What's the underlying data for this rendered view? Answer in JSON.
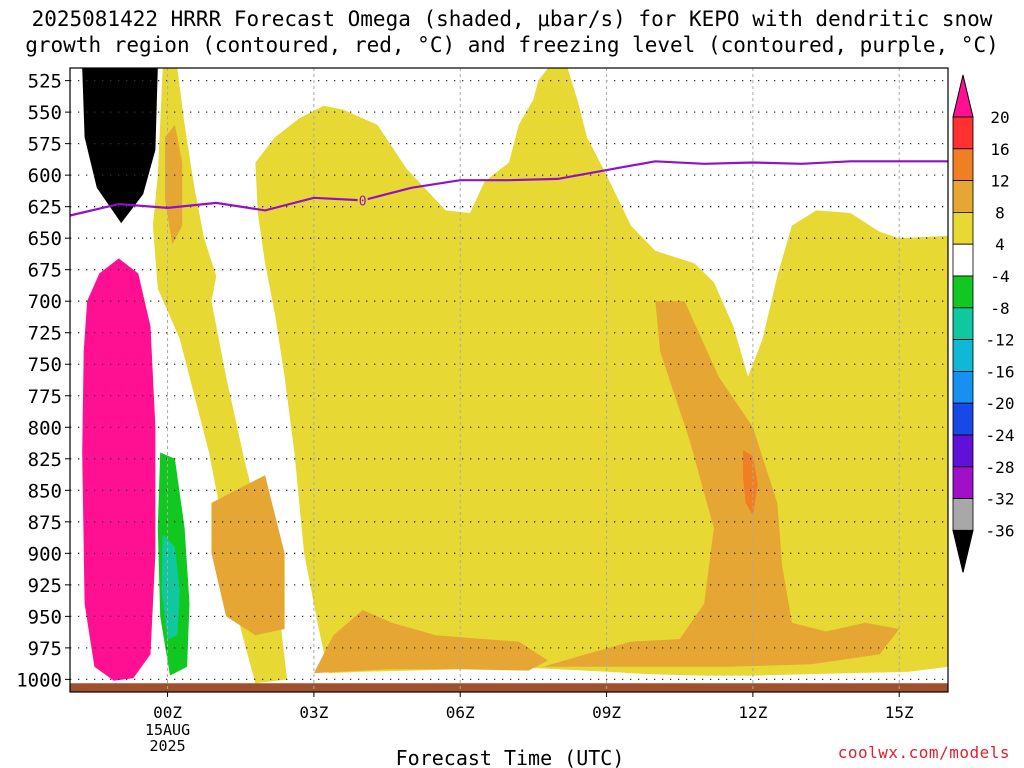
{
  "title": {
    "line1": "2025081422 HRRR Forecast Omega (shaded, μbar/s) for KEPO with dendritic snow",
    "line2": "growth region (contoured, red, °C) and freezing level (contoured, purple, °C)"
  },
  "credit": "coolwx.com/models",
  "chart_data": {
    "type": "heatmap",
    "title": "2025081422 HRRR Forecast Omega (shaded, μbar/s) for KEPO with dendritic snow growth region (contoured, red, °C) and freezing level (contoured, purple, °C)",
    "xlabel": "Forecast Time (UTC)",
    "ylabel": "",
    "x_ticks": [
      {
        "label": "00Z",
        "hour": 0,
        "sub": [
          "15AUG",
          "2025"
        ]
      },
      {
        "label": "03Z",
        "hour": 3
      },
      {
        "label": "06Z",
        "hour": 6
      },
      {
        "label": "09Z",
        "hour": 9
      },
      {
        "label": "12Z",
        "hour": 12
      },
      {
        "label": "15Z",
        "hour": 15
      }
    ],
    "xlim_hours": [
      -2,
      16
    ],
    "y_ticks": [
      525,
      550,
      575,
      600,
      625,
      650,
      675,
      700,
      725,
      750,
      775,
      800,
      825,
      850,
      875,
      900,
      925,
      950,
      975,
      1000
    ],
    "ylim_hpa": [
      515,
      1010
    ],
    "grid": true,
    "colorbar": {
      "labels": [
        "20",
        "16",
        "12",
        "8",
        "4",
        "-4",
        "-8",
        "-12",
        "-16",
        "-20",
        "-24",
        "-28",
        "-32",
        "-36"
      ],
      "colors": [
        "#ff1093",
        "#ff3030",
        "#f07f24",
        "#e6a633",
        "#e7d834",
        "#ffffff",
        "#10c820",
        "#10c8a0",
        "#10b8d8",
        "#1890f0",
        "#1848e8",
        "#6010d8",
        "#a010c8",
        "#a8a8a8",
        "#000000"
      ]
    },
    "freezing_level": {
      "label": "0",
      "points": [
        [
          -2.0,
          632
        ],
        [
          -1.0,
          623
        ],
        [
          0.0,
          626
        ],
        [
          1.0,
          622
        ],
        [
          2.0,
          628
        ],
        [
          3.0,
          618
        ],
        [
          4.0,
          620
        ],
        [
          5.0,
          610
        ],
        [
          6.0,
          604
        ],
        [
          7.0,
          604
        ],
        [
          8.0,
          603
        ],
        [
          9.0,
          596
        ],
        [
          10.0,
          589
        ],
        [
          11.0,
          591
        ],
        [
          12.0,
          590
        ],
        [
          13.0,
          591
        ],
        [
          14.0,
          589
        ],
        [
          16.0,
          589
        ]
      ]
    },
    "omega_regions": [
      {
        "value": "-36",
        "color": "#000000",
        "points": [
          [
            -1.75,
            515
          ],
          [
            -0.2,
            515
          ],
          [
            -0.25,
            580
          ],
          [
            -0.5,
            615
          ],
          [
            -0.95,
            638
          ],
          [
            -1.45,
            610
          ],
          [
            -1.7,
            570
          ]
        ]
      },
      {
        "value": "4 to 8",
        "color": "#e7d834",
        "points": [
          [
            -0.1,
            515
          ],
          [
            0.2,
            515
          ],
          [
            0.35,
            560
          ],
          [
            0.55,
            610
          ],
          [
            0.75,
            650
          ],
          [
            1.0,
            680
          ],
          [
            0.9,
            700
          ],
          [
            1.2,
            760
          ],
          [
            1.6,
            830
          ],
          [
            2.0,
            890
          ],
          [
            2.3,
            950
          ],
          [
            2.45,
            1000
          ],
          [
            1.8,
            1003
          ],
          [
            1.5,
            960
          ],
          [
            1.25,
            900
          ],
          [
            0.85,
            820
          ],
          [
            0.25,
            730
          ],
          [
            -0.2,
            690
          ],
          [
            -0.3,
            640
          ],
          [
            -0.2,
            600
          ]
        ]
      },
      {
        "value": "4 to 8",
        "color": "#e7d834",
        "points": [
          [
            1.8,
            590
          ],
          [
            2.2,
            570
          ],
          [
            2.7,
            555
          ],
          [
            3.2,
            545
          ],
          [
            3.6,
            548
          ],
          [
            4.3,
            560
          ],
          [
            4.9,
            595
          ],
          [
            5.7,
            628
          ],
          [
            6.2,
            630
          ],
          [
            6.5,
            605
          ],
          [
            7.0,
            590
          ],
          [
            7.2,
            560
          ],
          [
            7.5,
            540
          ],
          [
            7.6,
            525
          ],
          [
            7.8,
            515
          ],
          [
            8.2,
            515
          ],
          [
            8.4,
            540
          ],
          [
            8.6,
            570
          ],
          [
            9.0,
            600
          ],
          [
            9.5,
            640
          ],
          [
            10.0,
            660
          ],
          [
            10.8,
            670
          ],
          [
            11.2,
            685
          ],
          [
            11.6,
            720
          ],
          [
            11.9,
            760
          ],
          [
            12.2,
            730
          ],
          [
            12.5,
            680
          ],
          [
            12.8,
            640
          ],
          [
            13.3,
            628
          ],
          [
            14.0,
            630
          ],
          [
            14.6,
            645
          ],
          [
            15.0,
            650
          ],
          [
            16.0,
            648
          ],
          [
            16.0,
            990
          ],
          [
            15.2,
            994
          ],
          [
            14.0,
            995
          ],
          [
            13.0,
            996
          ],
          [
            12.0,
            997
          ],
          [
            11.0,
            997
          ],
          [
            10.0,
            996
          ],
          [
            9.0,
            994
          ],
          [
            8.0,
            992
          ],
          [
            7.0,
            990
          ],
          [
            6.0,
            992
          ],
          [
            5.0,
            993
          ],
          [
            4.0,
            994
          ],
          [
            3.3,
            995
          ],
          [
            3.1,
            960
          ],
          [
            2.8,
            900
          ],
          [
            2.6,
            820
          ],
          [
            2.4,
            760
          ],
          [
            2.2,
            710
          ],
          [
            2.0,
            670
          ],
          [
            1.85,
            630
          ]
        ]
      },
      {
        "value": "8 to 12",
        "color": "#e6a633",
        "points": [
          [
            -0.05,
            570
          ],
          [
            0.15,
            560
          ],
          [
            0.3,
            590
          ],
          [
            0.3,
            640
          ],
          [
            0.1,
            655
          ],
          [
            -0.05,
            620
          ]
        ]
      },
      {
        "value": "8 to 12",
        "color": "#e6a633",
        "points": [
          [
            0.9,
            860
          ],
          [
            1.4,
            850
          ],
          [
            2.0,
            838
          ],
          [
            2.4,
            900
          ],
          [
            2.4,
            960
          ],
          [
            1.8,
            965
          ],
          [
            1.2,
            950
          ],
          [
            0.9,
            900
          ]
        ]
      },
      {
        "value": "8 to 12",
        "color": "#e6a633",
        "points": [
          [
            3.0,
            995
          ],
          [
            3.4,
            965
          ],
          [
            4.0,
            945
          ],
          [
            4.6,
            955
          ],
          [
            5.5,
            965
          ],
          [
            6.5,
            968
          ],
          [
            7.2,
            970
          ],
          [
            7.8,
            985
          ],
          [
            7.4,
            993
          ],
          [
            6.0,
            992
          ],
          [
            4.5,
            992
          ]
        ]
      },
      {
        "value": "8 to 12",
        "color": "#e6a633",
        "points": [
          [
            7.7,
            990
          ],
          [
            8.4,
            982
          ],
          [
            9.5,
            970
          ],
          [
            10.5,
            968
          ],
          [
            11.0,
            940
          ],
          [
            11.2,
            880
          ],
          [
            10.7,
            810
          ],
          [
            10.1,
            740
          ],
          [
            10.0,
            700
          ],
          [
            10.6,
            700
          ],
          [
            11.3,
            760
          ],
          [
            12.0,
            800
          ],
          [
            12.5,
            860
          ],
          [
            12.6,
            910
          ],
          [
            12.8,
            955
          ],
          [
            13.5,
            962
          ],
          [
            14.3,
            955
          ],
          [
            15.0,
            960
          ],
          [
            14.6,
            980
          ],
          [
            13.2,
            988
          ],
          [
            11.5,
            990
          ],
          [
            9.5,
            990
          ]
        ]
      },
      {
        "value": "12 to 16",
        "color": "#f07f24",
        "points": [
          [
            11.8,
            818
          ],
          [
            12.0,
            823
          ],
          [
            12.1,
            845
          ],
          [
            12.0,
            870
          ],
          [
            11.85,
            860
          ],
          [
            11.8,
            840
          ]
        ]
      },
      {
        "value": "-8 to -4",
        "color": "#10c820",
        "points": [
          [
            -0.15,
            820
          ],
          [
            0.15,
            825
          ],
          [
            0.35,
            880
          ],
          [
            0.45,
            940
          ],
          [
            0.4,
            990
          ],
          [
            0.05,
            997
          ],
          [
            -0.15,
            950
          ],
          [
            -0.2,
            880
          ]
        ]
      },
      {
        "value": "-12 to -8",
        "color": "#10c8a0",
        "points": [
          [
            -0.1,
            885
          ],
          [
            0.15,
            895
          ],
          [
            0.25,
            930
          ],
          [
            0.2,
            965
          ],
          [
            0.0,
            968
          ],
          [
            -0.12,
            930
          ]
        ]
      },
      {
        "value": ">= 20",
        "color": "#ff1093",
        "points": [
          [
            -1.65,
            700
          ],
          [
            -1.4,
            678
          ],
          [
            -1.0,
            666
          ],
          [
            -0.6,
            678
          ],
          [
            -0.35,
            720
          ],
          [
            -0.25,
            800
          ],
          [
            -0.25,
            900
          ],
          [
            -0.35,
            980
          ],
          [
            -0.7,
            999
          ],
          [
            -1.1,
            1001
          ],
          [
            -1.5,
            990
          ],
          [
            -1.7,
            940
          ],
          [
            -1.75,
            820
          ],
          [
            -1.72,
            740
          ]
        ]
      },
      {
        "value": "brown",
        "color": "#a0502d",
        "points": [
          [
            -2.0,
            1003
          ],
          [
            16.0,
            1003
          ],
          [
            16.0,
            1010
          ],
          [
            -2.0,
            1010
          ]
        ]
      }
    ]
  }
}
